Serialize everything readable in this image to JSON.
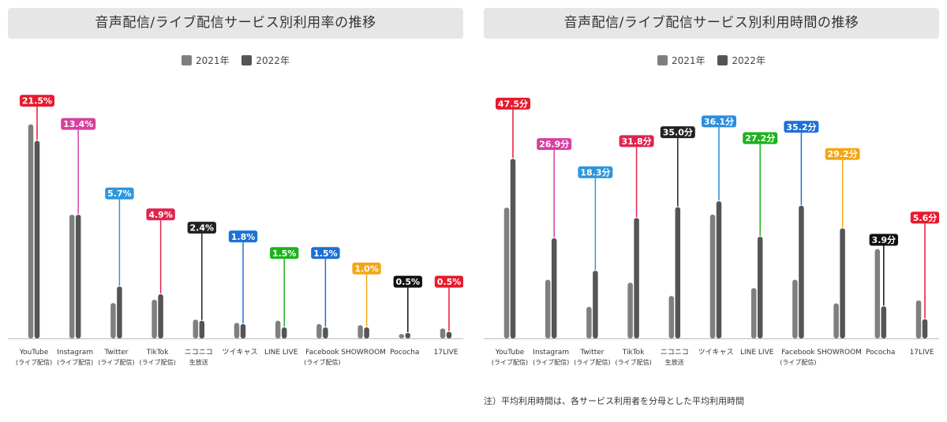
{
  "chart_data": [
    {
      "type": "bar",
      "title": "音声配信/ライブ配信サービス別利用率の推移",
      "legend": [
        "2021年",
        "2022年"
      ],
      "unit": "%",
      "categories": [
        [
          "YouTube",
          "(ライブ配信)"
        ],
        [
          "Instagram",
          "(ライブ配信)"
        ],
        [
          "Twitter",
          "(ライブ配信)"
        ],
        [
          "TikTok",
          "(ライブ配信)"
        ],
        [
          "ニコニコ",
          "生放送"
        ],
        [
          "ツイキャス"
        ],
        [
          "LINE LIVE"
        ],
        [
          "Facebook",
          "(ライブ配信)"
        ],
        [
          "SHOWROOM"
        ],
        [
          "Pococha"
        ],
        [
          "17LIVE"
        ]
      ],
      "series": [
        {
          "name": "2021年",
          "values": [
            19.4,
            11.2,
            3.2,
            3.5,
            1.7,
            1.4,
            1.6,
            1.3,
            1.2,
            0.4,
            0.9
          ]
        },
        {
          "name": "2022年",
          "values": [
            17.9,
            11.2,
            4.7,
            4.0,
            1.6,
            1.3,
            1.0,
            1.0,
            1.0,
            0.5,
            0.6
          ]
        }
      ],
      "labels": [
        "21.5%",
        "13.4%",
        "5.7%",
        "4.9%",
        "2.4%",
        "1.8%",
        "1.5%",
        "1.5%",
        "1.0%",
        "0.5%",
        "0.5%"
      ],
      "colors": [
        "#e8192c",
        "#d6409f",
        "#2b97dd",
        "#e0244f",
        "#222222",
        "#1a72d9",
        "#1cb31c",
        "#1d6fd6",
        "#f5a613",
        "#111111",
        "#e8192c"
      ],
      "label_heights": [
        21.5,
        19.4,
        13.1,
        11.2,
        10.0,
        9.2,
        7.7,
        7.7,
        6.3,
        5.1,
        5.1
      ],
      "ylim": [
        0,
        22.8
      ]
    },
    {
      "type": "bar",
      "title": "音声配信/ライブ配信サービス別利用時間の推移",
      "legend": [
        "2021年",
        "2022年"
      ],
      "unit": "分",
      "categories": [
        [
          "YouTube",
          "(ライブ配信)"
        ],
        [
          "Instagram",
          "(ライブ配信)"
        ],
        [
          "Twitter",
          "(ライブ配信)"
        ],
        [
          "TikTok",
          "(ライブ配信)"
        ],
        [
          "ニコニコ",
          "生放送"
        ],
        [
          "ツイキャス"
        ],
        [
          "LINE LIVE"
        ],
        [
          "Facebook",
          "(ライブ配信)"
        ],
        [
          "SHOWROOM"
        ],
        [
          "Pococha"
        ],
        [
          "17LIVE"
        ]
      ],
      "series": [
        {
          "name": "2021年",
          "values": [
            26.5,
            11.9,
            6.4,
            11.3,
            8.6,
            25.1,
            10.2,
            11.9,
            7.1,
            18.1,
            7.7
          ]
        },
        {
          "name": "2022年",
          "values": [
            36.4,
            20.3,
            13.7,
            24.4,
            26.6,
            27.8,
            20.6,
            26.9,
            22.3,
            6.5,
            3.9
          ]
        }
      ],
      "labels": [
        "47.5分",
        "26.9分",
        "18.3分",
        "31.8分",
        "35.0分",
        "36.1分",
        "27.2分",
        "35.2分",
        "29.2分",
        "3.9分",
        "5.6分"
      ],
      "colors": [
        "#e8192c",
        "#d6409f",
        "#2b97dd",
        "#e0244f",
        "#222222",
        "#2b8ede",
        "#1cb31c",
        "#1d6fd6",
        "#f5a613",
        "#111111",
        "#e8192c"
      ],
      "label_heights": [
        47.5,
        39.3,
        33.6,
        39.9,
        41.7,
        43.9,
        40.5,
        42.8,
        37.3,
        19.9,
        24.4
      ],
      "ylim": [
        0,
        51.0
      ]
    }
  ],
  "note": "注）平均利用時間は、各サービス利用者を分母とした平均利用時間",
  "colors": {
    "bar2021": "#7f7f7f",
    "bar2022": "#555555",
    "axis": "#bbbbbb"
  }
}
